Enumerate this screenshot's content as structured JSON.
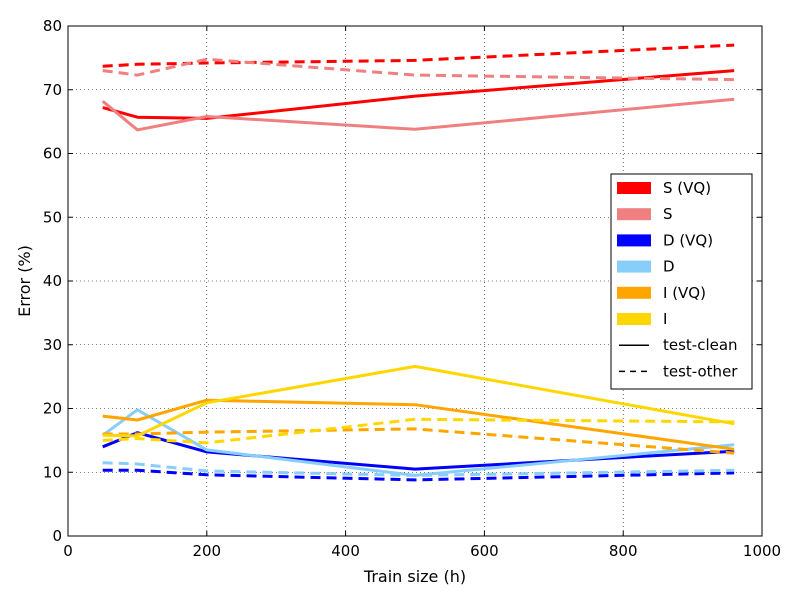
{
  "chart_data": {
    "type": "line",
    "title": "",
    "xlabel": "Train size (h)",
    "ylabel": "Error (%)",
    "xlim": [
      0,
      1000
    ],
    "ylim": [
      0,
      80
    ],
    "xticks": [
      0,
      200,
      400,
      600,
      800,
      1000
    ],
    "yticks": [
      0,
      10,
      20,
      30,
      40,
      50,
      60,
      70,
      80
    ],
    "grid": true,
    "legend_position": "right",
    "series": [
      {
        "name": "S (VQ) test-clean",
        "color": "#ff0000",
        "dash": false,
        "x": [
          50,
          100,
          200,
          500,
          960
        ],
        "y": [
          67.2,
          65.7,
          65.5,
          69.0,
          73.0
        ]
      },
      {
        "name": "S (VQ) test-other",
        "color": "#ff0000",
        "dash": true,
        "x": [
          50,
          100,
          200,
          500,
          960
        ],
        "y": [
          73.7,
          74.0,
          74.2,
          74.6,
          77.0
        ]
      },
      {
        "name": "S test-clean",
        "color": "#f08080",
        "dash": false,
        "x": [
          50,
          100,
          200,
          500,
          960
        ],
        "y": [
          68.2,
          63.7,
          65.8,
          63.8,
          68.5
        ]
      },
      {
        "name": "S test-other",
        "color": "#f08080",
        "dash": true,
        "x": [
          50,
          100,
          200,
          500,
          960
        ],
        "y": [
          73.0,
          72.3,
          74.8,
          72.3,
          71.6
        ]
      },
      {
        "name": "D (VQ) test-clean",
        "color": "#0000ff",
        "dash": false,
        "x": [
          50,
          100,
          200,
          500,
          960
        ],
        "y": [
          14.0,
          16.2,
          13.2,
          10.5,
          13.3
        ]
      },
      {
        "name": "D (VQ) test-other",
        "color": "#0000ff",
        "dash": true,
        "x": [
          50,
          100,
          200,
          500,
          960
        ],
        "y": [
          10.3,
          10.3,
          9.6,
          8.8,
          9.9
        ]
      },
      {
        "name": "D test-clean",
        "color": "#87cefa",
        "dash": false,
        "x": [
          50,
          100,
          200,
          500,
          960
        ],
        "y": [
          15.8,
          19.8,
          13.5,
          9.5,
          14.3
        ]
      },
      {
        "name": "D test-other",
        "color": "#87cefa",
        "dash": true,
        "x": [
          50,
          100,
          200,
          500,
          960
        ],
        "y": [
          11.5,
          11.3,
          10.2,
          9.5,
          10.3
        ]
      },
      {
        "name": "I (VQ) test-clean",
        "color": "#ffa500",
        "dash": false,
        "x": [
          50,
          100,
          200,
          500,
          960
        ],
        "y": [
          18.8,
          18.2,
          21.3,
          20.6,
          13.6
        ]
      },
      {
        "name": "I (VQ) test-other",
        "color": "#ffa500",
        "dash": true,
        "x": [
          50,
          100,
          200,
          500,
          960
        ],
        "y": [
          16.0,
          16.0,
          16.3,
          16.8,
          13.0
        ]
      },
      {
        "name": "I test-clean",
        "color": "#ffd700",
        "dash": false,
        "x": [
          50,
          100,
          200,
          500,
          960
        ],
        "y": [
          15.8,
          15.7,
          20.9,
          26.6,
          17.6
        ]
      },
      {
        "name": "I test-other",
        "color": "#ffd700",
        "dash": true,
        "x": [
          50,
          100,
          200,
          500,
          960
        ],
        "y": [
          15.0,
          15.3,
          14.6,
          18.3,
          17.9
        ]
      }
    ],
    "legend": [
      {
        "label": "S (VQ)",
        "color": "#ff0000",
        "style": "patch"
      },
      {
        "label": "S",
        "color": "#f08080",
        "style": "patch"
      },
      {
        "label": "D (VQ)",
        "color": "#0000ff",
        "style": "patch"
      },
      {
        "label": "D",
        "color": "#87cefa",
        "style": "patch"
      },
      {
        "label": "I (VQ)",
        "color": "#ffa500",
        "style": "patch"
      },
      {
        "label": "I",
        "color": "#ffd700",
        "style": "patch"
      },
      {
        "label": "test-clean",
        "color": "#000000",
        "style": "solid"
      },
      {
        "label": "test-other",
        "color": "#000000",
        "style": "dashed"
      }
    ]
  }
}
